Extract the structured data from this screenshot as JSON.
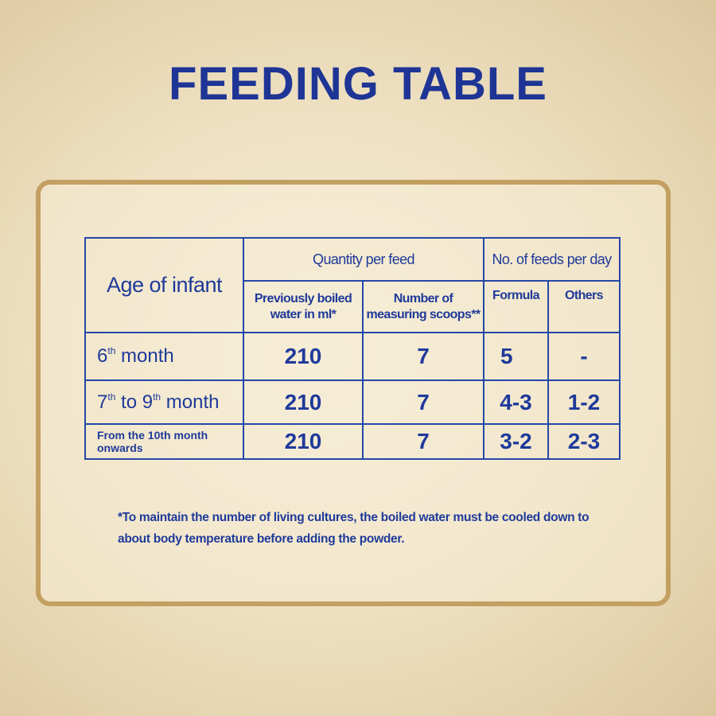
{
  "title": "FEEDING TABLE",
  "table": {
    "header": {
      "age": "Age of infant",
      "quantity": "Quantity per feed",
      "feeds": "No. of feeds per day",
      "water": "Previously boiled water in ml*",
      "scoops": "Number of measuring scoops**",
      "formula": "Formula",
      "others": "Others"
    },
    "rows": [
      {
        "age": [
          "6",
          "th",
          " month"
        ],
        "water": 210,
        "scoops": 7,
        "formula": 5,
        "others": "-"
      },
      {
        "age": [
          "7",
          "th",
          " to 9",
          "th",
          " month"
        ],
        "water": 210,
        "scoops": 7,
        "formula": "4-3",
        "others": "1-2"
      },
      {
        "age": [
          "From the 10th month onwards"
        ],
        "water": 210,
        "scoops": 7,
        "formula": "3-2",
        "others": "2-3"
      }
    ]
  },
  "footnote": "*To maintain the number of living cultures, the boiled water must be cooled down to about body temperature before adding the powder."
}
